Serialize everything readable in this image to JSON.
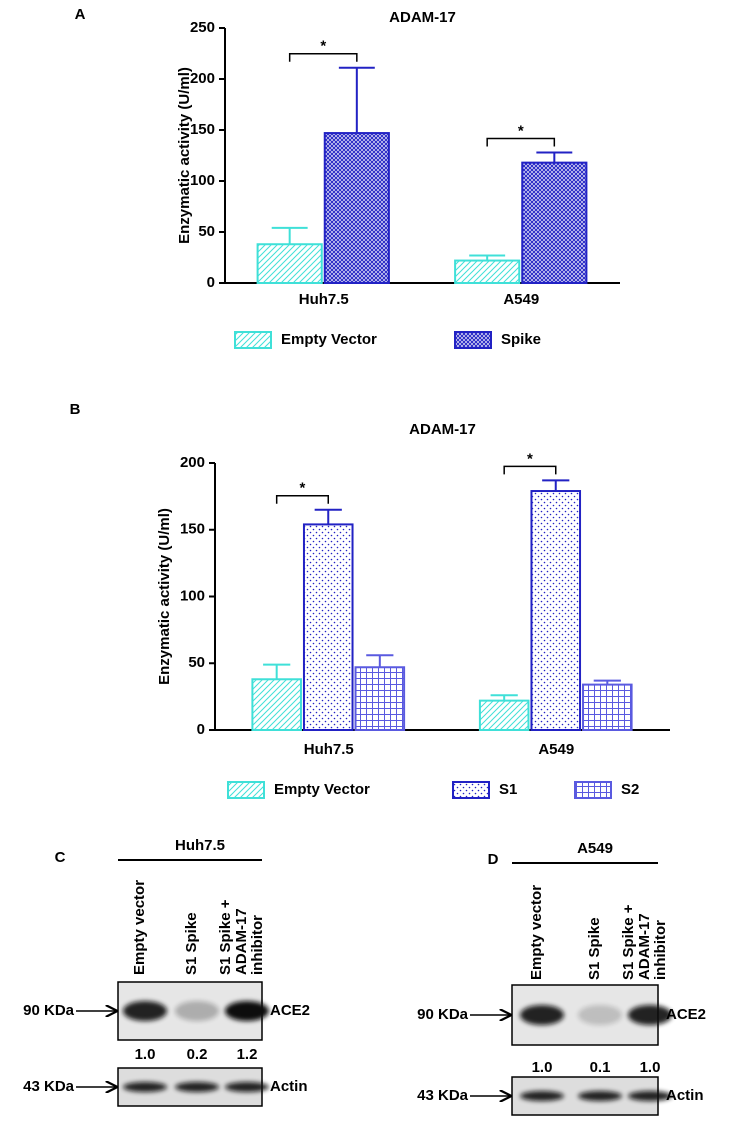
{
  "chart_data": [
    {
      "type": "bar",
      "panel": "A",
      "title": "ADAM-17",
      "y_label": "Enzymatic activity (U/ml)",
      "categories": [
        "Huh7.5",
        "A549"
      ],
      "series": [
        {
          "name": "Empty Vector",
          "color": "#3fe0d8",
          "pattern": "hatch",
          "values": [
            38,
            22
          ],
          "errors": [
            16,
            5
          ]
        },
        {
          "name": "Spike",
          "color": "#2222c4",
          "pattern": "crosshatch",
          "values": [
            147,
            118
          ],
          "errors": [
            64,
            10
          ]
        }
      ],
      "significance": [
        "*",
        "*"
      ],
      "ylim": [
        0,
        250
      ],
      "yticks": [
        0,
        50,
        100,
        150,
        200,
        250
      ]
    },
    {
      "type": "bar",
      "panel": "B",
      "title": "ADAM-17",
      "y_label": "Enzymatic activity (U/ml)",
      "categories": [
        "Huh7.5",
        "A549"
      ],
      "series": [
        {
          "name": "Empty Vector",
          "color": "#3fe0d8",
          "pattern": "hatch",
          "values": [
            38,
            22
          ],
          "errors": [
            11,
            4
          ]
        },
        {
          "name": "S1",
          "color": "#2222c4",
          "pattern": "dots",
          "values": [
            154,
            179
          ],
          "errors": [
            11,
            8
          ]
        },
        {
          "name": "S2",
          "color": "#5a5ae0",
          "pattern": "grid",
          "values": [
            47,
            34
          ],
          "errors": [
            9,
            3
          ]
        }
      ],
      "significance": [
        "*",
        "*"
      ],
      "ylim": [
        0,
        200
      ],
      "yticks": [
        0,
        50,
        100,
        150,
        200
      ]
    }
  ],
  "blots": [
    {
      "panel": "C",
      "cell_line": "Huh7.5",
      "lanes": [
        [
          "Empty vector"
        ],
        [
          "S1 Spike"
        ],
        [
          "S1 Spike +",
          "ADAM-17",
          "inhibitor"
        ]
      ],
      "rows": [
        {
          "marker": "90 KDa",
          "protein": "ACE2",
          "quantification": [
            "1.0",
            "0.2",
            "1.2"
          ]
        },
        {
          "marker": "43 KDa",
          "protein": "Actin"
        }
      ]
    },
    {
      "panel": "D",
      "cell_line": "A549",
      "lanes": [
        [
          "Empty vector"
        ],
        [
          "S1 Spike"
        ],
        [
          "S1 Spike +",
          "ADAM-17",
          "inhibitor"
        ]
      ],
      "rows": [
        {
          "marker": "90 KDa",
          "protein": "ACE2",
          "quantification": [
            "1.0",
            "0.1",
            "1.0"
          ]
        },
        {
          "marker": "43 KDa",
          "protein": "Actin"
        }
      ]
    }
  ]
}
